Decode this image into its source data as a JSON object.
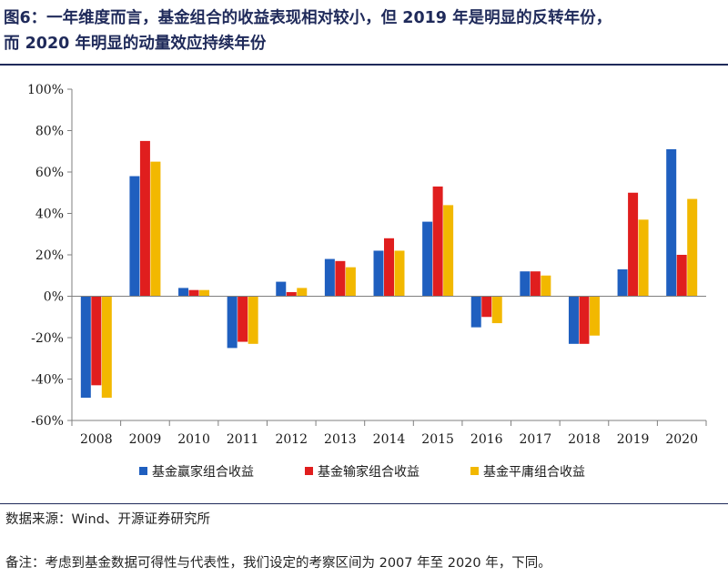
{
  "header": {
    "title_line1": "图6：一年维度而言，基金组合的收益表现相对较小，但 2019 年是明显的反转年份，",
    "title_line2": "而 2020 年明显的动量效应持续年份"
  },
  "chart_data": {
    "type": "bar",
    "title": "",
    "xlabel": "",
    "ylabel": "",
    "ylim": [
      -60,
      100
    ],
    "yticks": [
      -60,
      -40,
      -20,
      0,
      20,
      40,
      60,
      80,
      100
    ],
    "ytick_labels": [
      "-60%",
      "-40%",
      "-20%",
      "0%",
      "20%",
      "40%",
      "60%",
      "80%",
      "100%"
    ],
    "grid": false,
    "legend_position": "bottom",
    "categories": [
      "2008",
      "2009",
      "2010",
      "2011",
      "2012",
      "2013",
      "2014",
      "2015",
      "2016",
      "2017",
      "2018",
      "2019",
      "2020"
    ],
    "series": [
      {
        "name": "基金赢家组合收益",
        "color": "#1f5fbf",
        "values": [
          -49,
          58,
          4,
          -25,
          7,
          18,
          22,
          36,
          -15,
          12,
          -23,
          13,
          71
        ]
      },
      {
        "name": "基金输家组合收益",
        "color": "#e01e1e",
        "values": [
          -43,
          75,
          3,
          -22,
          2,
          17,
          28,
          53,
          -10,
          12,
          -23,
          50,
          20
        ]
      },
      {
        "name": "基金平庸组合收益",
        "color": "#f2b800",
        "values": [
          -49,
          65,
          3,
          -23,
          4,
          14,
          22,
          44,
          -13,
          10,
          -19,
          37,
          47
        ]
      }
    ]
  },
  "footer": {
    "source": "数据来源：Wind、开源证券研究所",
    "note": "备注：考虑到基金数据可得性与代表性，我们设定的考察区间为 2007 年至 2020 年，下同。"
  }
}
